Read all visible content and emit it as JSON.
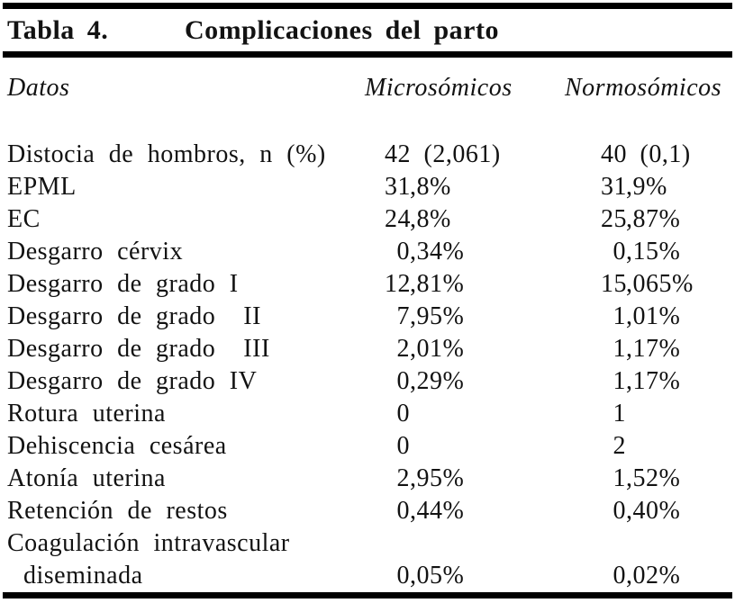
{
  "caption": {
    "label": "Tabla 4.",
    "title": "Complicaciones del parto"
  },
  "columns": [
    "Datos",
    "Microsómicos",
    "Normosómicos"
  ],
  "rows": [
    {
      "label": "Distocia de hombros, n (%)",
      "micro": "42 (2,061)",
      "normo": "40 (0,1)"
    },
    {
      "label": "EPML",
      "micro": "31,8%",
      "normo": "31,9%"
    },
    {
      "label": "EC",
      "micro": "24,8%",
      "normo": "25,87%"
    },
    {
      "label": "Desgarro cérvix",
      "micro": "0,34%",
      "normo": "0,15%"
    },
    {
      "label": "Desgarro de grado I",
      "micro": "12,81%",
      "normo": "15,065%"
    },
    {
      "label": "Desgarro de grado  II",
      "micro": "7,95%",
      "normo": "1,01%"
    },
    {
      "label": "Desgarro de grado  III",
      "micro": "2,01%",
      "normo": "1,17%"
    },
    {
      "label": "Desgarro de grado IV",
      "micro": "0,29%",
      "normo": "1,17%"
    },
    {
      "label": "Rotura uterina",
      "micro": "0",
      "normo": "1"
    },
    {
      "label": "Dehiscencia cesárea",
      "micro": "0",
      "normo": "2"
    },
    {
      "label": "Atonía uterina",
      "micro": "2,95%",
      "normo": "1,52%"
    },
    {
      "label": "Retención de restos",
      "micro": "0,44%",
      "normo": "0,40%"
    },
    {
      "label": "Coagulación intravascular",
      "micro": "",
      "normo": ""
    },
    {
      "label": "diseminada",
      "indent": true,
      "micro": "0,05%",
      "normo": "0,02%"
    }
  ],
  "colors": {
    "background": "#ffffff",
    "text": "#121212",
    "rule": "#000000"
  }
}
